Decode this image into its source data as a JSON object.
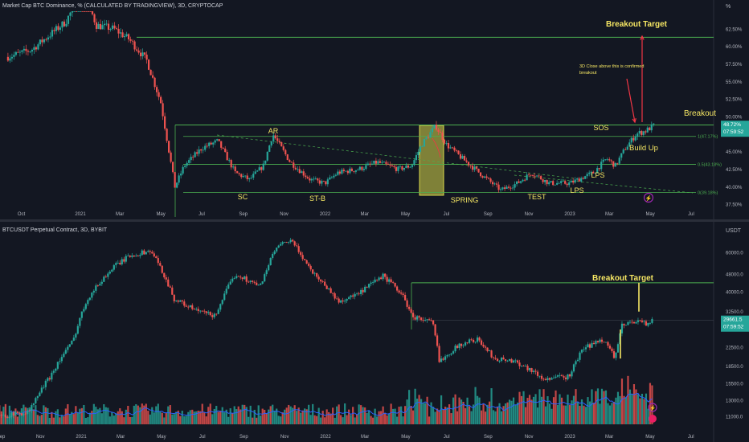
{
  "top_panel": {
    "header": "Market Cap BTC Dominance, % (CALCULATED BY TRADINGVIEW), 3D, CRYPTOCAP",
    "unit": "%",
    "price_box": {
      "value": "48.72%",
      "time": "07:59:52"
    }
  },
  "bottom_panel": {
    "header": "BTCUSDT Perpetual Contract, 3D, BYBIT",
    "unit": "USDT",
    "price_box": {
      "value": "29661.5",
      "time": "07:59:52"
    }
  },
  "x_ticks": [
    "Sep",
    "Oct",
    "Nov",
    "2021",
    "Mar",
    "May",
    "Jul",
    "Sep",
    "Nov",
    "2022",
    "Mar",
    "May",
    "Jul",
    "Sep",
    "Nov",
    "2023",
    "Mar",
    "May",
    "Jul"
  ],
  "colors": {
    "up": "#26a69a",
    "down": "#ef5350",
    "level": "#4caf50",
    "label": "#f5e663",
    "arrow": "#f23645",
    "volume_ma": "#2962ff",
    "box": "#d9d94a"
  },
  "chart_data": [
    {
      "type": "candlestick",
      "title": "Market Cap BTC Dominance, % (CALCULATED BY TRADINGVIEW), 3D, CRYPTOCAP",
      "ylabel": "%",
      "ylim": [
        36.5,
        66.5
      ],
      "y_ticks": [
        "62.50%",
        "60.00%",
        "57.50%",
        "55.00%",
        "52.50%",
        "50.00%",
        "47.50%",
        "45.00%",
        "42.50%",
        "40.00%",
        "37.50%"
      ],
      "x_ticks": [
        "Oct",
        "2021",
        "Mar",
        "May",
        "Jul",
        "Sep",
        "Nov",
        "2022",
        "Mar",
        "May",
        "Jul",
        "Sep",
        "Nov",
        "2023",
        "Mar",
        "May",
        "Jul"
      ],
      "path_points": [
        [
          "2020-09-15",
          58.5
        ],
        [
          "2020-10-20",
          59.5
        ],
        [
          "2020-12-10",
          63.5
        ],
        [
          "2021-01-05",
          68
        ],
        [
          "2021-01-25",
          63
        ],
        [
          "2021-02-20",
          62.5
        ],
        [
          "2021-03-15",
          61
        ],
        [
          "2021-04-10",
          58
        ],
        [
          "2021-05-01",
          52
        ],
        [
          "2021-05-15",
          44
        ],
        [
          "2021-05-22",
          40
        ],
        [
          "2021-06-05",
          43
        ],
        [
          "2021-07-01",
          45.5
        ],
        [
          "2021-07-25",
          46.5
        ],
        [
          "2021-08-20",
          42
        ],
        [
          "2021-09-10",
          41
        ],
        [
          "2021-10-01",
          43
        ],
        [
          "2021-10-15",
          47.5
        ],
        [
          "2021-11-10",
          43.5
        ],
        [
          "2021-12-10",
          41
        ],
        [
          "2022-01-01",
          40.5
        ],
        [
          "2022-01-20",
          42
        ],
        [
          "2022-02-20",
          42.5
        ],
        [
          "2022-03-20",
          43.5
        ],
        [
          "2022-04-20",
          42.5
        ],
        [
          "2022-05-10",
          43
        ],
        [
          "2022-05-25",
          46
        ],
        [
          "2022-06-15",
          48.7
        ],
        [
          "2022-07-01",
          46
        ],
        [
          "2022-07-25",
          44
        ],
        [
          "2022-08-25",
          41.5
        ],
        [
          "2022-09-20",
          39.5
        ],
        [
          "2022-10-15",
          40.5
        ],
        [
          "2022-11-05",
          42
        ],
        [
          "2022-12-01",
          40.5
        ],
        [
          "2023-01-01",
          40.5
        ],
        [
          "2023-02-05",
          42
        ],
        [
          "2023-02-25",
          44
        ],
        [
          "2023-03-10",
          43
        ],
        [
          "2023-03-25",
          45.5
        ],
        [
          "2023-04-10",
          47.5
        ],
        [
          "2023-04-25",
          48
        ],
        [
          "2023-05-06",
          48.72
        ]
      ],
      "levels": [
        {
          "name": "Breakout Target",
          "value": 61.3
        },
        {
          "name": "Breakout",
          "value": 48.8
        },
        {
          "name": "fib-1",
          "label": "1(47.17%)",
          "value": 47.17
        },
        {
          "name": "fib-0.5",
          "label": "0.5(43.18%)",
          "value": 43.18
        },
        {
          "name": "fib-0",
          "label": "0(39.18%)",
          "value": 39.18
        }
      ],
      "annotations": [
        "Breakout Target",
        "3D Close above this is confirmed breakout",
        "Breakout",
        "AR",
        "SOS",
        "Build Up",
        "LPS",
        "LPS",
        "SC",
        "ST-B",
        "SPRING",
        "TEST"
      ],
      "last_value": 48.72
    },
    {
      "type": "candlestick",
      "title": "BTCUSDT Perpetual Contract, 3D, BYBIT",
      "ylabel": "USDT",
      "scale": "log",
      "ylim": [
        10200,
        78000
      ],
      "y_ticks": [
        "60000.0",
        "48000.0",
        "40000.0",
        "32500.0",
        "22500.0",
        "18500.0",
        "15500.0",
        "13000.0",
        "11000.0"
      ],
      "x_ticks": [
        "Sep",
        "Nov",
        "2021",
        "Mar",
        "May",
        "Jul",
        "Sep",
        "Nov",
        "2022",
        "Mar",
        "May",
        "Jul",
        "Sep",
        "Nov",
        "2023",
        "Mar",
        "May",
        "Jul"
      ],
      "path_points": [
        [
          "2020-09-01",
          11000
        ],
        [
          "2020-10-15",
          11500
        ],
        [
          "2020-11-15",
          16500
        ],
        [
          "2020-12-20",
          24000
        ],
        [
          "2021-01-10",
          37000
        ],
        [
          "2021-02-20",
          52000
        ],
        [
          "2021-03-15",
          58000
        ],
        [
          "2021-04-15",
          61000
        ],
        [
          "2021-05-20",
          37000
        ],
        [
          "2021-06-20",
          33000
        ],
        [
          "2021-07-20",
          31000
        ],
        [
          "2021-08-20",
          48000
        ],
        [
          "2021-09-25",
          42000
        ],
        [
          "2021-10-20",
          63000
        ],
        [
          "2021-11-10",
          68000
        ],
        [
          "2021-12-10",
          50000
        ],
        [
          "2022-01-20",
          36000
        ],
        [
          "2022-02-20",
          39000
        ],
        [
          "2022-03-28",
          47000
        ],
        [
          "2022-04-25",
          39000
        ],
        [
          "2022-05-10",
          31000
        ],
        [
          "2022-06-10",
          29000
        ],
        [
          "2022-06-20",
          19500
        ],
        [
          "2022-07-20",
          23000
        ],
        [
          "2022-08-15",
          24500
        ],
        [
          "2022-09-10",
          20000
        ],
        [
          "2022-10-10",
          19500
        ],
        [
          "2022-11-08",
          17500
        ],
        [
          "2022-11-20",
          16200
        ],
        [
          "2022-12-31",
          16600
        ],
        [
          "2023-01-20",
          22000
        ],
        [
          "2023-02-20",
          24500
        ],
        [
          "2023-03-10",
          20000
        ],
        [
          "2023-03-20",
          28000
        ],
        [
          "2023-04-15",
          30000
        ],
        [
          "2023-04-25",
          28500
        ],
        [
          "2023-05-06",
          29661.5
        ]
      ],
      "levels": [
        {
          "name": "Breakout Target",
          "value": 43800
        },
        {
          "name": "ref-line",
          "value": 29700
        }
      ],
      "annotations": [
        "Breakout Target"
      ],
      "last_value": 29661.5
    }
  ],
  "page_geometry_note": ""
}
